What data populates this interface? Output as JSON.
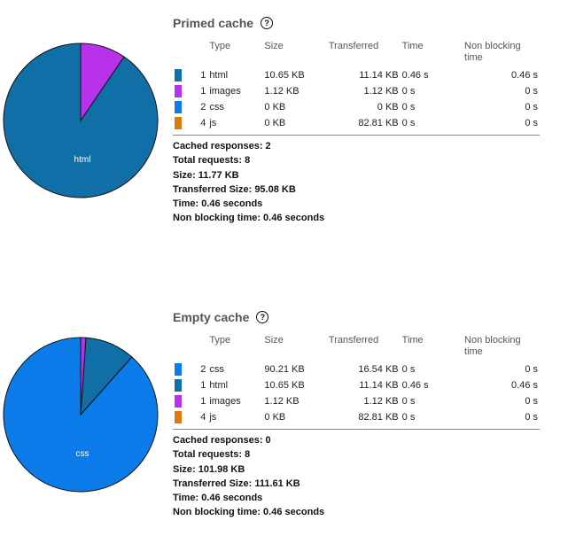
{
  "columns": {
    "type": "Type",
    "size": "Size",
    "transferred": "Transferred",
    "time": "Time",
    "non_blocking": "Non blocking time"
  },
  "colors": {
    "html": "#0f6fa6",
    "images": "#b732e8",
    "css": "#0a7be8",
    "js": "#d97c0d"
  },
  "primed": {
    "title": "Primed cache",
    "help_icon": "question-circle-icon",
    "rows": [
      {
        "count": "1",
        "type": "html",
        "size": "10.65 KB",
        "transferred": "11.14 KB",
        "time": "0.46 s",
        "non_blocking": "0.46 s",
        "color": "#0f6fa6"
      },
      {
        "count": "1",
        "type": "images",
        "size": "1.12 KB",
        "transferred": "1.12 KB",
        "time": "0 s",
        "non_blocking": "0 s",
        "color": "#b732e8"
      },
      {
        "count": "2",
        "type": "css",
        "size": "0 KB",
        "transferred": "0 KB",
        "time": "0 s",
        "non_blocking": "0 s",
        "color": "#0a7be8"
      },
      {
        "count": "4",
        "type": "js",
        "size": "0 KB",
        "transferred": "82.81 KB",
        "time": "0 s",
        "non_blocking": "0 s",
        "color": "#d97c0d"
      }
    ],
    "totals": {
      "cached": "Cached responses: 2",
      "requests": "Total requests: 8",
      "size": "Size: 11.77 KB",
      "transferred": "Transferred Size: 95.08 KB",
      "time": "Time: 0.46 seconds",
      "non_blocking": "Non blocking time: 0.46 seconds"
    },
    "pie": {
      "slices": [
        {
          "label": "html",
          "value": 10.65,
          "color": "#0f6fa6"
        },
        {
          "label": "images",
          "value": 1.12,
          "color": "#b732e8"
        }
      ],
      "center_label": "html"
    }
  },
  "empty": {
    "title": "Empty cache",
    "help_icon": "question-circle-icon",
    "rows": [
      {
        "count": "2",
        "type": "css",
        "size": "90.21 KB",
        "transferred": "16.54 KB",
        "time": "0 s",
        "non_blocking": "0 s",
        "color": "#0a7be8"
      },
      {
        "count": "1",
        "type": "html",
        "size": "10.65 KB",
        "transferred": "11.14 KB",
        "time": "0.46 s",
        "non_blocking": "0.46 s",
        "color": "#0f6fa6"
      },
      {
        "count": "1",
        "type": "images",
        "size": "1.12 KB",
        "transferred": "1.12 KB",
        "time": "0 s",
        "non_blocking": "0 s",
        "color": "#b732e8"
      },
      {
        "count": "4",
        "type": "js",
        "size": "0 KB",
        "transferred": "82.81 KB",
        "time": "0 s",
        "non_blocking": "0 s",
        "color": "#d97c0d"
      }
    ],
    "totals": {
      "cached": "Cached responses: 0",
      "requests": "Total requests: 8",
      "size": "Size: 101.98 KB",
      "transferred": "Transferred Size: 111.61 KB",
      "time": "Time: 0.46 seconds",
      "non_blocking": "Non blocking time: 0.46 seconds"
    },
    "pie": {
      "slices": [
        {
          "label": "css",
          "value": 90.21,
          "color": "#0a7be8"
        },
        {
          "label": "html",
          "value": 10.65,
          "color": "#0f6fa6"
        },
        {
          "label": "images",
          "value": 1.12,
          "color": "#b732e8"
        }
      ],
      "center_label": "css"
    }
  }
}
